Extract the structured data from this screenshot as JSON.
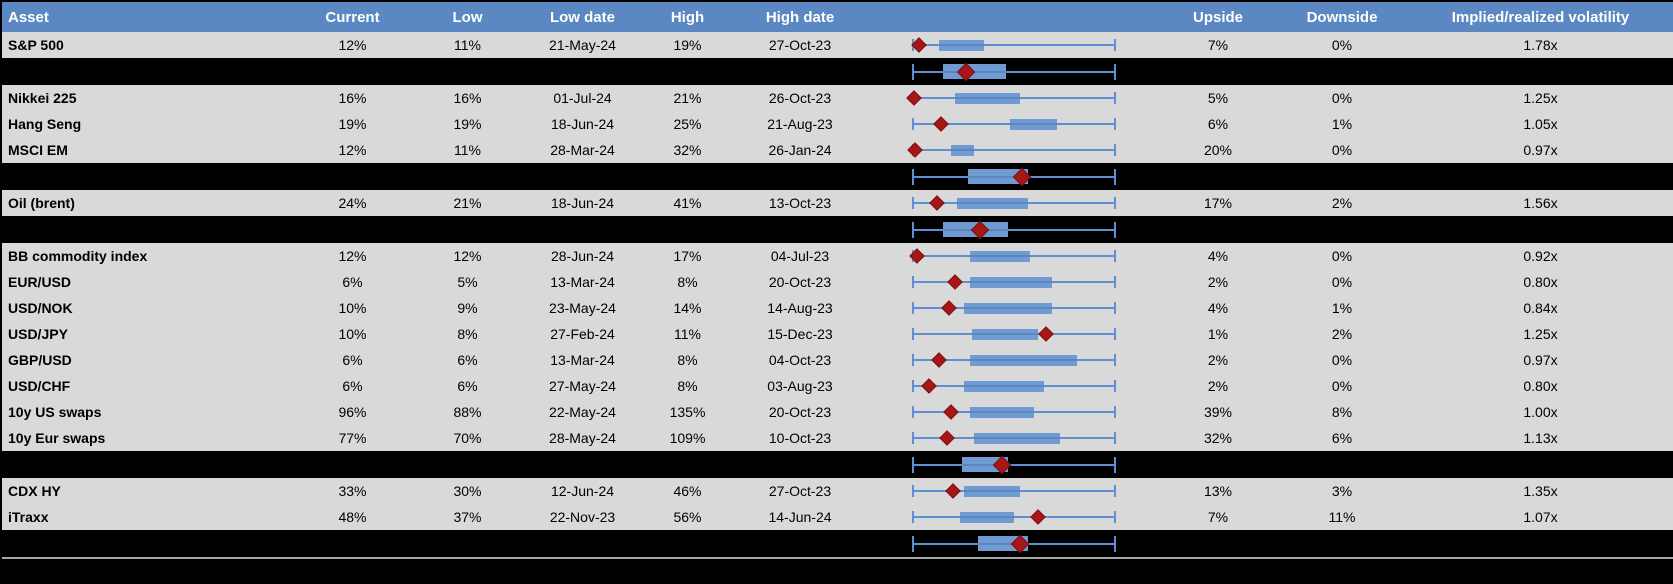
{
  "colors": {
    "header_bg": "#5b87c3",
    "header_text": "#ffffff",
    "row_bg": "#d9d9d9",
    "separator_bg": "#000000",
    "box_fill": "#6f9ad2",
    "whisker": "#5f8ed2",
    "marker_fill": "#a81717",
    "marker_edge": "#7a1010",
    "divider_line": "#a6a6a6",
    "body_text": "#000000"
  },
  "chart_data": {
    "type": "table",
    "columns": [
      "Asset",
      "Current",
      "Low",
      "Low date",
      "High",
      "High date",
      "",
      "Upside",
      "Downside",
      "Implied/realized volatility"
    ],
    "boxplot_axis": {
      "range": [
        0,
        1
      ],
      "note_marker": "red diamond = current value position within low-high range",
      "note_box": "blue box = interquartile band, whisker = full low-high span"
    },
    "rows": [
      {
        "type": "data",
        "asset": "S&P 500",
        "current": "12%",
        "low": "11%",
        "low_date": "21-May-24",
        "high": "19%",
        "high_date": "27-Oct-23",
        "upside": "7%",
        "downside": "0%",
        "vol": "1.78x",
        "boxplot": {
          "box_lo": 0.13,
          "box_hi": 0.35,
          "marker": 0.03
        }
      },
      {
        "type": "summary",
        "boxplot": {
          "box_lo": 0.15,
          "box_hi": 0.46,
          "marker": 0.26
        }
      },
      {
        "type": "data",
        "asset": "Nikkei 225",
        "current": "16%",
        "low": "16%",
        "low_date": "01-Jul-24",
        "high": "21%",
        "high_date": "26-Oct-23",
        "upside": "5%",
        "downside": "0%",
        "vol": "1.25x",
        "boxplot": {
          "box_lo": 0.21,
          "box_hi": 0.53,
          "marker": 0.005
        }
      },
      {
        "type": "data",
        "asset": "Hang Seng",
        "current": "19%",
        "low": "19%",
        "low_date": "18-Jun-24",
        "high": "25%",
        "high_date": "21-Aug-23",
        "upside": "6%",
        "downside": "1%",
        "vol": "1.05x",
        "boxplot": {
          "box_lo": 0.48,
          "box_hi": 0.71,
          "marker": 0.14
        }
      },
      {
        "type": "data",
        "asset": "MSCI EM",
        "current": "12%",
        "low": "11%",
        "low_date": "28-Mar-24",
        "high": "32%",
        "high_date": "26-Jan-24",
        "upside": "20%",
        "downside": "0%",
        "vol": "0.97x",
        "boxplot": {
          "box_lo": 0.19,
          "box_hi": 0.3,
          "marker": 0.01
        }
      },
      {
        "type": "summary",
        "boxplot": {
          "box_lo": 0.27,
          "box_hi": 0.57,
          "marker": 0.54
        }
      },
      {
        "type": "data",
        "asset": "Oil (brent)",
        "current": "24%",
        "low": "21%",
        "low_date": "18-Jun-24",
        "high": "41%",
        "high_date": "13-Oct-23",
        "upside": "17%",
        "downside": "2%",
        "vol": "1.56x",
        "boxplot": {
          "box_lo": 0.22,
          "box_hi": 0.57,
          "marker": 0.12
        }
      },
      {
        "type": "summary",
        "boxplot": {
          "box_lo": 0.15,
          "box_hi": 0.47,
          "marker": 0.33
        }
      },
      {
        "type": "data",
        "asset": "BB commodity index",
        "current": "12%",
        "low": "12%",
        "low_date": "28-Jun-24",
        "high": "17%",
        "high_date": "04-Jul-23",
        "upside": "4%",
        "downside": "0%",
        "vol": "0.92x",
        "boxplot": {
          "box_lo": 0.28,
          "box_hi": 0.58,
          "marker": 0.02
        }
      },
      {
        "type": "data",
        "asset": "EUR/USD",
        "current": "6%",
        "low": "5%",
        "low_date": "13-Mar-24",
        "high": "8%",
        "high_date": "20-Oct-23",
        "upside": "2%",
        "downside": "0%",
        "vol": "0.80x",
        "boxplot": {
          "box_lo": 0.28,
          "box_hi": 0.69,
          "marker": 0.21
        }
      },
      {
        "type": "data",
        "asset": "USD/NOK",
        "current": "10%",
        "low": "9%",
        "low_date": "23-May-24",
        "high": "14%",
        "high_date": "14-Aug-23",
        "upside": "4%",
        "downside": "1%",
        "vol": "0.84x",
        "boxplot": {
          "box_lo": 0.25,
          "box_hi": 0.69,
          "marker": 0.18
        }
      },
      {
        "type": "data",
        "asset": "USD/JPY",
        "current": "10%",
        "low": "8%",
        "low_date": "27-Feb-24",
        "high": "11%",
        "high_date": "15-Dec-23",
        "upside": "1%",
        "downside": "2%",
        "vol": "1.25x",
        "boxplot": {
          "box_lo": 0.29,
          "box_hi": 0.62,
          "marker": 0.66
        }
      },
      {
        "type": "data",
        "asset": "GBP/USD",
        "current": "6%",
        "low": "6%",
        "low_date": "13-Mar-24",
        "high": "8%",
        "high_date": "04-Oct-23",
        "upside": "2%",
        "downside": "0%",
        "vol": "0.97x",
        "boxplot": {
          "box_lo": 0.28,
          "box_hi": 0.81,
          "marker": 0.13
        }
      },
      {
        "type": "data",
        "asset": "USD/CHF",
        "current": "6%",
        "low": "6%",
        "low_date": "27-May-24",
        "high": "8%",
        "high_date": "03-Aug-23",
        "upside": "2%",
        "downside": "0%",
        "vol": "0.80x",
        "boxplot": {
          "box_lo": 0.25,
          "box_hi": 0.65,
          "marker": 0.08
        }
      },
      {
        "type": "data",
        "asset": "10y US swaps",
        "current": "96%",
        "low": "88%",
        "low_date": "22-May-24",
        "high": "135%",
        "high_date": "20-Oct-23",
        "upside": "39%",
        "downside": "8%",
        "vol": "1.00x",
        "boxplot": {
          "box_lo": 0.28,
          "box_hi": 0.6,
          "marker": 0.19
        }
      },
      {
        "type": "data",
        "asset": "10y Eur swaps",
        "current": "77%",
        "low": "70%",
        "low_date": "28-May-24",
        "high": "109%",
        "high_date": "10-Oct-23",
        "upside": "32%",
        "downside": "6%",
        "vol": "1.13x",
        "boxplot": {
          "box_lo": 0.3,
          "box_hi": 0.73,
          "marker": 0.17
        }
      },
      {
        "type": "summary",
        "boxplot": {
          "box_lo": 0.24,
          "box_hi": 0.47,
          "marker": 0.44
        }
      },
      {
        "type": "data",
        "asset": "CDX HY",
        "current": "33%",
        "low": "30%",
        "low_date": "12-Jun-24",
        "high": "46%",
        "high_date": "27-Oct-23",
        "upside": "13%",
        "downside": "3%",
        "vol": "1.35x",
        "boxplot": {
          "box_lo": 0.25,
          "box_hi": 0.53,
          "marker": 0.2
        }
      },
      {
        "type": "data",
        "asset": "iTraxx",
        "current": "48%",
        "low": "37%",
        "low_date": "22-Nov-23",
        "high": "56%",
        "high_date": "14-Jun-24",
        "upside": "7%",
        "downside": "11%",
        "vol": "1.07x",
        "boxplot": {
          "box_lo": 0.23,
          "box_hi": 0.5,
          "marker": 0.62
        }
      },
      {
        "type": "summary",
        "boxplot": {
          "box_lo": 0.32,
          "box_hi": 0.57,
          "marker": 0.53
        }
      }
    ]
  }
}
